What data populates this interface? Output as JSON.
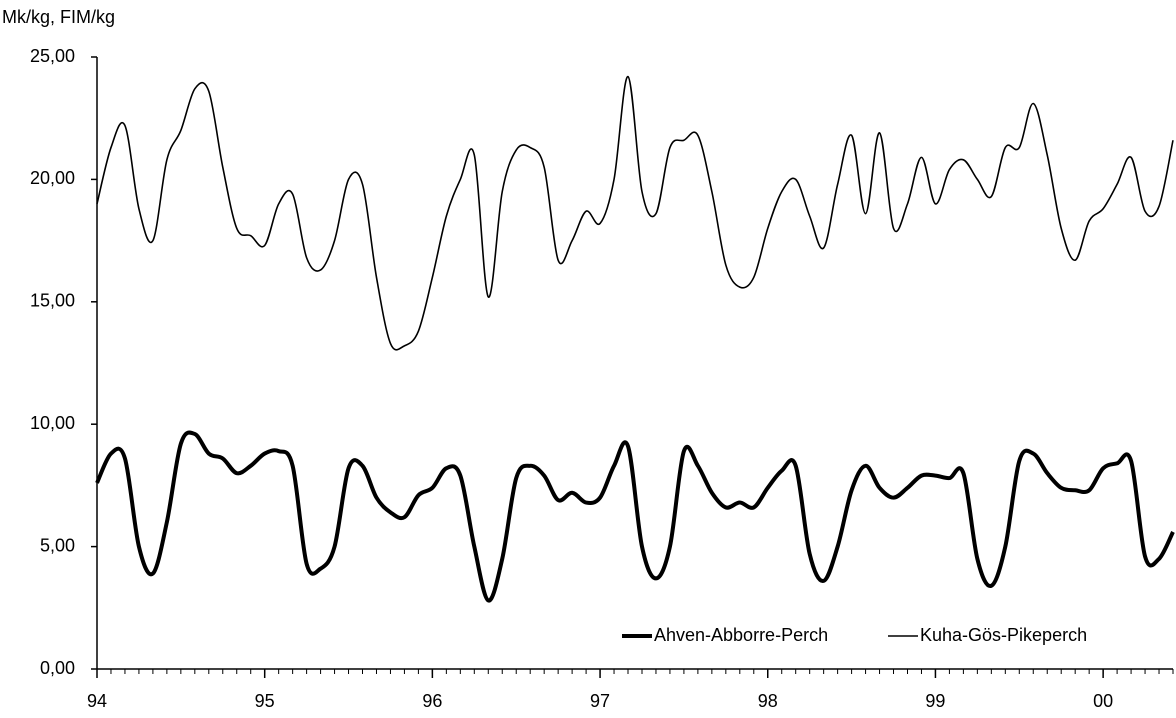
{
  "chart_data": {
    "type": "line",
    "y_axis_label": "Mk/kg, FIM/kg",
    "x": [
      0,
      1,
      2,
      3,
      4,
      5,
      6,
      7,
      8,
      9,
      10,
      11,
      12,
      13,
      14,
      15,
      16,
      17,
      18,
      19,
      20,
      21,
      22,
      23,
      24,
      25,
      26,
      27,
      28,
      29,
      30,
      31,
      32,
      33,
      34,
      35,
      36,
      37,
      38,
      39,
      40,
      41,
      42,
      43,
      44,
      45,
      46,
      47,
      48,
      49,
      50,
      51,
      52,
      53,
      54,
      55,
      56,
      57,
      58,
      59,
      60,
      61,
      62,
      63,
      64,
      65,
      66,
      67,
      68,
      69,
      70,
      71,
      72,
      73,
      74,
      75,
      76,
      77
    ],
    "xlim": [
      0,
      77
    ],
    "xticks": [
      {
        "value": 0,
        "label": "94"
      },
      {
        "value": 12,
        "label": "95"
      },
      {
        "value": 24,
        "label": "96"
      },
      {
        "value": 36,
        "label": "97"
      },
      {
        "value": 48,
        "label": "98"
      },
      {
        "value": 60,
        "label": "99"
      },
      {
        "value": 72,
        "label": "00"
      }
    ],
    "ylim": [
      0,
      25
    ],
    "yticks": [
      {
        "value": 0,
        "label": "0,00"
      },
      {
        "value": 5,
        "label": "5,00"
      },
      {
        "value": 10,
        "label": "10,00"
      },
      {
        "value": 15,
        "label": "15,00"
      },
      {
        "value": 20,
        "label": "20,00"
      },
      {
        "value": 25,
        "label": "25,00"
      }
    ],
    "series": [
      {
        "name": "Ahven-Abborre-Perch",
        "color": "#000000",
        "values": [
          7.6,
          8.8,
          8.6,
          5.0,
          3.9,
          6.0,
          9.2,
          9.6,
          8.8,
          8.6,
          8.0,
          8.3,
          8.8,
          8.9,
          8.3,
          4.3,
          4.1,
          5.0,
          8.2,
          8.3,
          7.0,
          6.4,
          6.2,
          7.1,
          7.4,
          8.2,
          7.9,
          5.0,
          2.8,
          4.5,
          7.8,
          8.3,
          7.9,
          6.9,
          7.2,
          6.8,
          7.0,
          8.3,
          9.1,
          5.0,
          3.7,
          5.0,
          8.9,
          8.3,
          7.2,
          6.6,
          6.8,
          6.6,
          7.4,
          8.1,
          8.3,
          4.7,
          3.6,
          5.0,
          7.3,
          8.3,
          7.4,
          7.0,
          7.4,
          7.9,
          7.9,
          7.8,
          8.0,
          4.5,
          3.4,
          5.0,
          8.5,
          8.8,
          8.0,
          7.4,
          7.3,
          7.3,
          8.2,
          8.4,
          8.5,
          4.6,
          4.5,
          5.6
        ]
      },
      {
        "name": "Kuha-Gös-Pikeperch",
        "color": "#000000",
        "values": [
          19.0,
          21.3,
          22.2,
          18.8,
          17.5,
          20.8,
          22.0,
          23.7,
          23.6,
          20.5,
          18.0,
          17.7,
          17.3,
          19.0,
          19.4,
          16.8,
          16.3,
          17.5,
          20.0,
          19.8,
          16.0,
          13.3,
          13.2,
          13.8,
          16.0,
          18.5,
          20.0,
          21.0,
          15.2,
          19.5,
          21.2,
          21.3,
          20.5,
          16.7,
          17.5,
          18.7,
          18.2,
          20.0,
          24.2,
          19.5,
          18.6,
          21.3,
          21.6,
          21.8,
          19.5,
          16.5,
          15.6,
          16.0,
          18.0,
          19.5,
          20.0,
          18.5,
          17.2,
          19.8,
          21.8,
          18.6,
          21.9,
          18.0,
          19.0,
          20.9,
          19.0,
          20.4,
          20.8,
          20.0,
          19.3,
          21.3,
          21.3,
          23.1,
          21.0,
          18.0,
          16.7,
          18.3,
          18.8,
          19.8,
          20.9,
          18.7,
          18.9,
          21.6
        ]
      }
    ],
    "legend": "lower right"
  }
}
